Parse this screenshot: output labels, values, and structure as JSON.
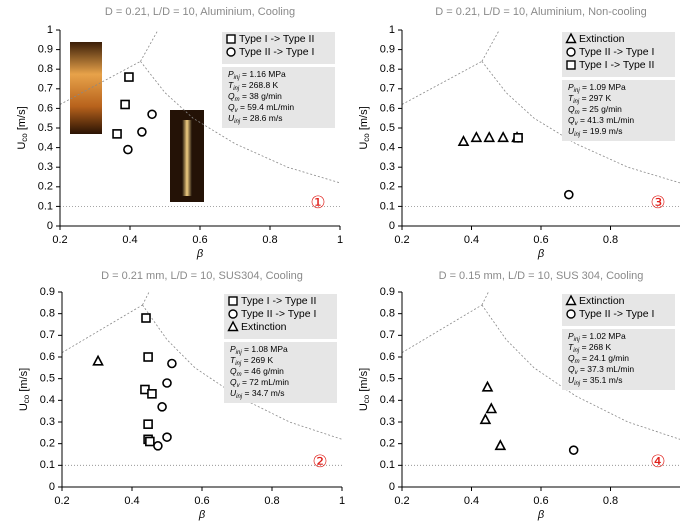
{
  "chart_data": [
    {
      "type": "scatter",
      "title": "D = 0.21, L/D = 10, Aluminium, Cooling",
      "xlabel": "β",
      "ylabel": {
        "text": "U",
        "sub": "co",
        "unit": " [m/s]"
      },
      "annotation": "①",
      "xlim": [
        0.2,
        1
      ],
      "xticks": [
        0.2,
        0.4,
        0.6,
        0.8,
        1
      ],
      "ylim": [
        0,
        1
      ],
      "yticks": [
        0,
        0.1,
        0.2,
        0.3,
        0.4,
        0.5,
        0.6,
        0.7,
        0.8,
        0.9,
        1
      ],
      "reference_line": 0.1,
      "series": [
        {
          "name": "Type I -> Type II",
          "marker": "square",
          "color": "#000000",
          "x": [
            0.397,
            0.386,
            0.363
          ],
          "values": [
            0.76,
            0.62,
            0.47
          ]
        },
        {
          "name": "Type II -> Type I",
          "marker": "circle",
          "color": "#000000",
          "x": [
            0.463,
            0.434,
            0.394
          ],
          "values": [
            0.57,
            0.48,
            0.39
          ]
        }
      ],
      "conditions": [
        {
          "symbol": "P",
          "sub": "inj",
          "text": " = 1.16 MPa"
        },
        {
          "symbol": "T",
          "sub": "inj",
          "text": " = 268.8 K"
        },
        {
          "symbol": "Q",
          "sub": "m",
          "text": " = 38 g/min"
        },
        {
          "symbol": "Q",
          "sub": "v",
          "text": " = 59.4 mL/min"
        },
        {
          "symbol": "U",
          "sub": "inj",
          "text": " = 28.6 m/s"
        }
      ]
    },
    {
      "type": "scatter",
      "title": "D = 0.21 mm, L/D = 10, SUS304, Cooling",
      "xlabel": "β",
      "ylabel": {
        "text": "U",
        "sub": "co",
        "unit": " [m/s]"
      },
      "annotation": "②",
      "xlim": [
        0.2,
        1
      ],
      "xticks": [
        0.2,
        0.4,
        0.6,
        0.8,
        1
      ],
      "ylim": [
        0,
        0.9
      ],
      "yticks": [
        0,
        0.1,
        0.2,
        0.3,
        0.4,
        0.5,
        0.6,
        0.7,
        0.8,
        0.9
      ],
      "reference_line": 0.1,
      "series": [
        {
          "name": "Type I -> Type II",
          "marker": "square",
          "color": "#000000",
          "x": [
            0.44,
            0.446,
            0.437,
            0.457,
            0.446,
            0.446,
            0.451
          ],
          "values": [
            0.78,
            0.6,
            0.45,
            0.43,
            0.29,
            0.22,
            0.21
          ]
        },
        {
          "name": "Type II -> Type I",
          "marker": "circle",
          "color": "#000000",
          "x": [
            0.514,
            0.5,
            0.486,
            0.5,
            0.474
          ],
          "values": [
            0.57,
            0.48,
            0.37,
            0.23,
            0.19
          ]
        },
        {
          "name": "Extinction",
          "marker": "triangle",
          "color": "#000000",
          "x": [
            0.303
          ],
          "values": [
            0.58
          ]
        }
      ],
      "conditions": [
        {
          "symbol": "P",
          "sub": "inj",
          "text": " = 1.08 MPa"
        },
        {
          "symbol": "T",
          "sub": "inj",
          "text": " = 269 K"
        },
        {
          "symbol": "Q",
          "sub": "m",
          "text": " = 46 g/min"
        },
        {
          "symbol": "Q",
          "sub": "v",
          "text": " = 72 mL/min"
        },
        {
          "symbol": "U",
          "sub": "inj",
          "text": " = 34.7 m/s"
        }
      ]
    },
    {
      "type": "scatter",
      "title": "D = 0.21, L/D = 10, Aluminium, Non-cooling",
      "xlabel": "β",
      "ylabel": {
        "text": "U",
        "sub": "co",
        "unit": " [m/s]"
      },
      "annotation": "③",
      "xlim": [
        0.2,
        1
      ],
      "xticks": [
        0.2,
        0.4,
        0.6,
        0.8
      ],
      "ylim": [
        0,
        1
      ],
      "yticks": [
        0,
        0.1,
        0.2,
        0.3,
        0.4,
        0.5,
        0.6,
        0.7,
        0.8,
        0.9,
        1
      ],
      "reference_line": 0.1,
      "series": [
        {
          "name": "Extinction",
          "marker": "triangle",
          "color": "#000000",
          "x": [
            0.377,
            0.414,
            0.451,
            0.491,
            0.531
          ],
          "values": [
            0.43,
            0.45,
            0.45,
            0.45,
            0.45
          ]
        },
        {
          "name": "Type II -> Type I",
          "marker": "circle",
          "color": "#000000",
          "x": [
            0.534,
            0.68
          ],
          "values": [
            0.45,
            0.16
          ]
        },
        {
          "name": "Type I -> Type II",
          "marker": "square",
          "color": "#000000",
          "x": [
            0.534
          ],
          "values": [
            0.45
          ]
        }
      ],
      "conditions": [
        {
          "symbol": "P",
          "sub": "inj",
          "text": " = 1.09 MPa"
        },
        {
          "symbol": "T",
          "sub": "inj",
          "text": " = 297 K"
        },
        {
          "symbol": "Q",
          "sub": "m",
          "text": " = 25 g/min"
        },
        {
          "symbol": "Q",
          "sub": "v",
          "text": " = 41.3 mL/min"
        },
        {
          "symbol": "U",
          "sub": "inj",
          "text": " = 19.9 m/s"
        }
      ]
    },
    {
      "type": "scatter",
      "title": "D = 0.15 mm, L/D = 10, SUS 304, Cooling",
      "xlabel": "β",
      "ylabel": {
        "text": "U",
        "sub": "co",
        "unit": " [m/s]"
      },
      "annotation": "④",
      "xlim": [
        0.2,
        1
      ],
      "xticks": [
        0.2,
        0.4,
        0.6,
        0.8
      ],
      "ylim": [
        0,
        0.9
      ],
      "yticks": [
        0,
        0.1,
        0.2,
        0.3,
        0.4,
        0.5,
        0.6,
        0.7,
        0.8,
        0.9
      ],
      "reference_line": 0.1,
      "series": [
        {
          "name": "Extinction",
          "marker": "triangle",
          "color": "#000000",
          "x": [
            0.446,
            0.457,
            0.44,
            0.483
          ],
          "values": [
            0.46,
            0.36,
            0.31,
            0.19
          ]
        },
        {
          "name": "Type II -> Type I",
          "marker": "circle",
          "color": "#000000",
          "x": [
            0.694
          ],
          "values": [
            0.17
          ]
        }
      ],
      "conditions": [
        {
          "symbol": "P",
          "sub": "inj",
          "text": " = 1.02 MPa"
        },
        {
          "symbol": "T",
          "sub": "inj",
          "text": " = 268 K"
        },
        {
          "symbol": "Q",
          "sub": "m",
          "text": " = 24.1 g/min"
        },
        {
          "symbol": "Q",
          "sub": "v",
          "text": " = 37.3 mL/min"
        },
        {
          "symbol": "U",
          "sub": "inj",
          "text": " = 35.1 m/s"
        }
      ]
    }
  ]
}
